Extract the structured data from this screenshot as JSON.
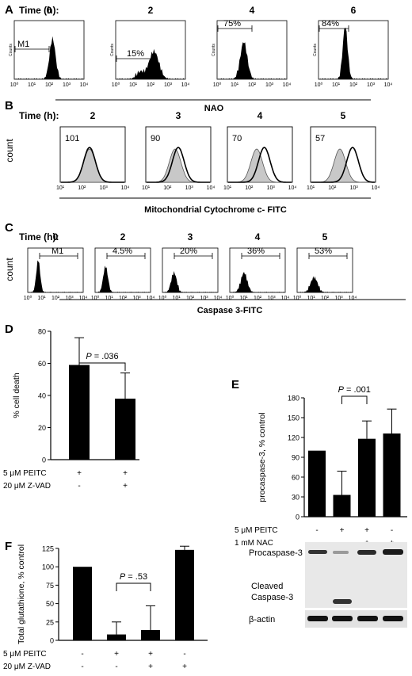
{
  "figure": {
    "panel_A": {
      "letter": "A",
      "time_label": "Time (h):",
      "xaxis_label": "NAO",
      "yaxis_label": "Counts",
      "tick_labels": [
        "10⁰",
        "10¹",
        "10²",
        "10³",
        "10⁴"
      ],
      "histograms": [
        {
          "time": "0",
          "gate_label": "M1"
        },
        {
          "time": "2",
          "gate_label": "15%"
        },
        {
          "time": "4",
          "gate_label": "75%"
        },
        {
          "time": "6",
          "gate_label": "84%"
        }
      ]
    },
    "panel_B": {
      "letter": "B",
      "time_label": "Time (h):",
      "xaxis_label": "Mitochondrial Cytochrome c- FITC",
      "yaxis_label": "count",
      "tick_labels": [
        "10¹",
        "10²",
        "10³",
        "10⁴"
      ],
      "histograms": [
        {
          "time": "2",
          "value": "101"
        },
        {
          "time": "3",
          "value": "90"
        },
        {
          "time": "4",
          "value": "70"
        },
        {
          "time": "5",
          "value": "57"
        }
      ]
    },
    "panel_C": {
      "letter": "C",
      "time_label": "Time (h):",
      "xaxis_label": "Caspase 3-FITC",
      "yaxis_label": "count",
      "tick_labels": [
        "10⁰",
        "10¹",
        "10²",
        "10³",
        "10⁴"
      ],
      "histograms": [
        {
          "time": "0",
          "gate_label": "M1"
        },
        {
          "time": "2",
          "gate_label": "4.5%"
        },
        {
          "time": "3",
          "gate_label": "20%"
        },
        {
          "time": "4",
          "gate_label": "36%"
        },
        {
          "time": "5",
          "gate_label": "53%"
        }
      ]
    },
    "panel_E_blot": {
      "bands": [
        "Procaspase-3",
        "Cleaved\nCaspase-3",
        "β-actin"
      ],
      "band_line1": "Cleaved",
      "band_line2": "Caspase-3"
    },
    "colors": {
      "bar": "#000000",
      "histogram_fill": "#000000",
      "control_fill": "#c8c8c8",
      "blot_bg": "#e6e6e6"
    }
  },
  "chart_data": [
    {
      "panel": "D",
      "type": "bar",
      "categories": [
        "",
        ""
      ],
      "values": [
        59,
        38
      ],
      "errors": [
        17,
        16
      ],
      "ylabel": "% cell death",
      "ylim": [
        0,
        80
      ],
      "yticks": [
        0,
        20,
        40,
        60,
        80
      ],
      "treatment_rows": [
        {
          "label": "5 μM PEITC",
          "signs": [
            "+",
            "+"
          ]
        },
        {
          "label": "20 μM Z-VAD",
          "signs": [
            "-",
            "+"
          ]
        }
      ],
      "annotation": {
        "text": "P = .036",
        "between": [
          0,
          1
        ]
      }
    },
    {
      "panel": "E",
      "type": "bar",
      "categories": [
        "",
        "",
        "",
        ""
      ],
      "values": [
        100,
        33,
        118,
        126
      ],
      "errors": [
        0,
        36,
        27,
        37
      ],
      "ylabel": "procaspase-3, % control",
      "ylim": [
        0,
        180
      ],
      "yticks": [
        0,
        30,
        60,
        90,
        120,
        150,
        180
      ],
      "treatment_rows": [
        {
          "label": "5 μM PEITC",
          "signs": [
            "-",
            "+",
            "+",
            "-"
          ]
        },
        {
          "label": "1 mM NAC",
          "signs": [
            "-",
            "-",
            "+",
            "+"
          ]
        }
      ],
      "annotation": {
        "text": "P = .001",
        "between": [
          1,
          2
        ]
      }
    },
    {
      "panel": "F",
      "type": "bar",
      "categories": [
        "",
        "",
        "",
        ""
      ],
      "values": [
        100,
        8,
        14,
        123
      ],
      "errors": [
        0,
        17,
        33,
        5
      ],
      "ylabel": "Total glutathione, % control",
      "ylim": [
        0,
        125
      ],
      "yticks": [
        0,
        25,
        50,
        75,
        100,
        125
      ],
      "treatment_rows": [
        {
          "label": "5 μM PEITC",
          "signs": [
            "-",
            "+",
            "+",
            "-"
          ]
        },
        {
          "label": "20 μM Z-VAD",
          "signs": [
            "-",
            "-",
            "+",
            "+"
          ]
        }
      ],
      "annotation": {
        "text": "P = .53",
        "between": [
          1,
          2
        ]
      }
    }
  ]
}
